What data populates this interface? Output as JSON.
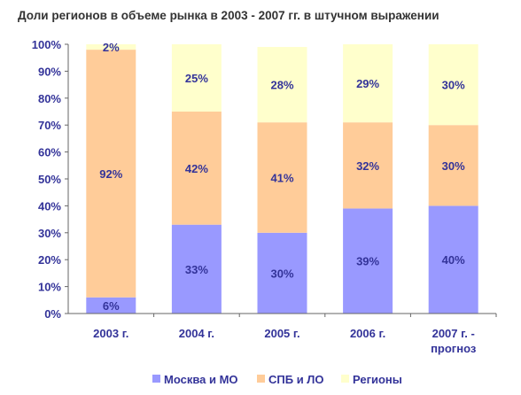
{
  "chart_data": {
    "type": "bar",
    "stacked": true,
    "title": "Доли регионов в объеме рынка в 2003 - 2007 гг. в штучном выражении",
    "categories": [
      [
        "2003 г."
      ],
      [
        "2004 г."
      ],
      [
        "2005 г."
      ],
      [
        "2006 г."
      ],
      [
        "2007 г. -",
        "прогноз"
      ]
    ],
    "series": [
      {
        "name": "Москва и МО",
        "color": "#9999ff",
        "values": [
          6,
          33,
          30,
          39,
          40
        ],
        "labels": [
          "6%",
          "33%",
          "30%",
          "39%",
          "40%"
        ]
      },
      {
        "name": "СПБ и ЛО",
        "color": "#ffcc99",
        "values": [
          92,
          42,
          41,
          32,
          30
        ],
        "labels": [
          "92%",
          "42%",
          "41%",
          "32%",
          "30%"
        ]
      },
      {
        "name": "Регионы",
        "color": "#ffffcc",
        "values": [
          2,
          25,
          28,
          29,
          30
        ],
        "labels": [
          "2%",
          "25%",
          "28%",
          "29%",
          "30%"
        ]
      }
    ],
    "ylim": [
      0,
      100
    ],
    "yticks": [
      "0%",
      "10%",
      "20%",
      "30%",
      "40%",
      "50%",
      "60%",
      "70%",
      "80%",
      "90%",
      "100%"
    ],
    "grid": false,
    "legend": "bottom",
    "label_color": "#333399",
    "axis_text_color": "#333399"
  }
}
